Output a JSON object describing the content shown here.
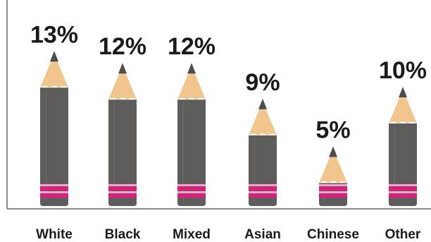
{
  "chart_data": {
    "type": "bar",
    "categories": [
      "White",
      "Black",
      "Mixed",
      "Asian",
      "Chinese",
      "Other"
    ],
    "values": [
      13,
      12,
      12,
      9,
      5,
      10
    ],
    "value_labels": [
      "13%",
      "12%",
      "12%",
      "9%",
      "5%",
      "10%"
    ],
    "title": "",
    "xlabel": "",
    "ylabel": "",
    "ylim": [
      0,
      14
    ],
    "grid": false,
    "bar_style": "pencil",
    "colors": {
      "pencil_body": "#5e5d5c",
      "pencil_highlight": "#6e6d6c",
      "wood_tip": "#f0c58e",
      "lead": "#4d4d4d",
      "band_main": "#e5197f",
      "band_light": "#f5a3cb",
      "axis": "#666666",
      "text": "#1a1a1a"
    }
  }
}
